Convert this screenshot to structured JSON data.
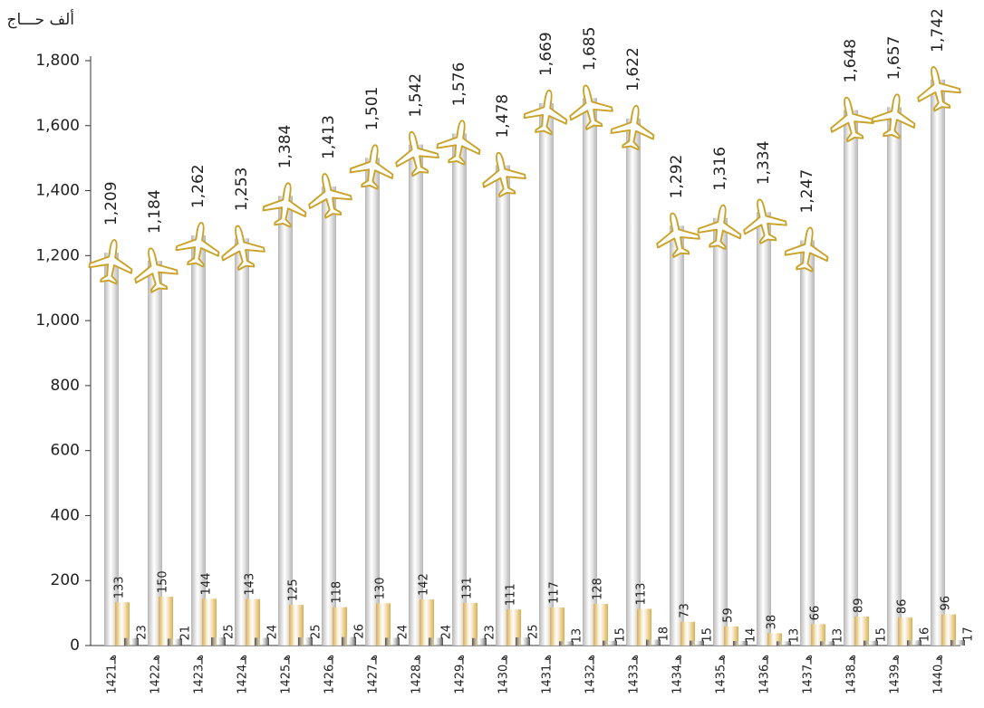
{
  "chart_data": {
    "type": "bar",
    "y_axis_label": "ألف حـــاج",
    "categories": [
      "1421هـ",
      "1422هـ",
      "1423هـ",
      "1424هـ",
      "1425هـ",
      "1426هـ",
      "1427هـ",
      "1428هـ",
      "1429هـ",
      "1430هـ",
      "1431هـ",
      "1432هـ",
      "1433هـ",
      "1434هـ",
      "1435هـ",
      "1436هـ",
      "1437هـ",
      "1438هـ",
      "1439هـ",
      "1440هـ"
    ],
    "series": [
      {
        "color": "#b4b4b4",
        "values": [
          1209,
          1184,
          1262,
          1253,
          1384,
          1413,
          1501,
          1542,
          1576,
          1478,
          1669,
          1685,
          1622,
          1292,
          1316,
          1334,
          1247,
          1648,
          1657,
          1742
        ],
        "value_labels": [
          "1,209",
          "1,184",
          "1,262",
          "1,253",
          "1,384",
          "1,413",
          "1,501",
          "1,542",
          "1,576",
          "1,478",
          "1,669",
          "1,685",
          "1,622",
          "1,292",
          "1,316",
          "1,334",
          "1,247",
          "1,648",
          "1,657",
          "1,742"
        ]
      },
      {
        "color": "#dcae45",
        "values": [
          133,
          150,
          144,
          143,
          125,
          118,
          130,
          142,
          131,
          111,
          117,
          128,
          113,
          73,
          59,
          38,
          66,
          89,
          86,
          96
        ]
      },
      {
        "color": "#4a4a4a",
        "values": [
          23,
          21,
          25,
          24,
          25,
          26,
          24,
          24,
          23,
          25,
          13,
          15,
          18,
          15,
          14,
          13,
          13,
          15,
          16,
          17
        ]
      }
    ],
    "ylim": [
      0,
      1800
    ],
    "yticks": [
      0,
      200,
      400,
      600,
      800,
      {
        "value": 1000,
        "label": "1,000"
      },
      {
        "value": 1200,
        "label": "1,200"
      },
      {
        "value": 1400,
        "label": "1,400"
      },
      {
        "value": 1600,
        "label": "1,600"
      },
      {
        "value": 1800,
        "label": "1,800"
      }
    ]
  }
}
